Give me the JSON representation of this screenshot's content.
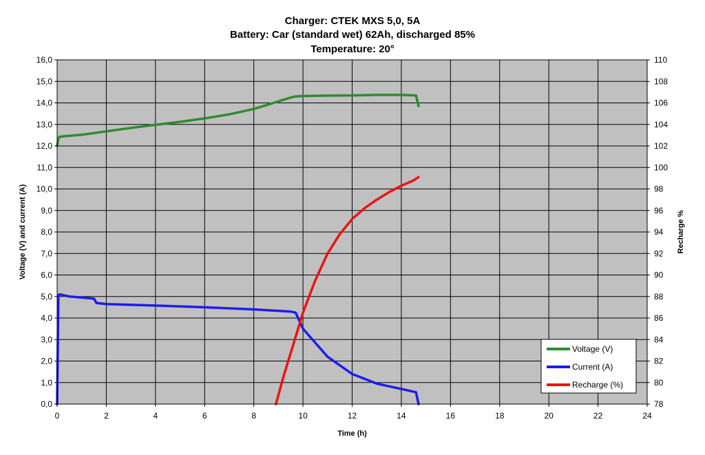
{
  "chart_data": {
    "type": "line",
    "title": [
      "Charger: CTEK MXS 5,0, 5A",
      "Battery: Car (standard wet) 62Ah, discharged 85%",
      "Temperature: 20°"
    ],
    "xlabel": "Time (h)",
    "ylabel_left": "Voltage (V) and current (A)",
    "ylabel_right": "Recharge %",
    "xlim": [
      0,
      24
    ],
    "ylim_left": [
      0,
      16
    ],
    "ylim_right": [
      78,
      110
    ],
    "x_ticks": [
      "0",
      "2",
      "4",
      "6",
      "8",
      "10",
      "12",
      "14",
      "16",
      "18",
      "20",
      "22",
      "24"
    ],
    "y_left_ticks": [
      "0,0",
      "1,0",
      "2,0",
      "3,0",
      "4,0",
      "5,0",
      "6,0",
      "7,0",
      "8,0",
      "9,0",
      "10,0",
      "11,0",
      "12,0",
      "13,0",
      "14,0",
      "15,0",
      "16,0"
    ],
    "y_right_ticks": [
      "78",
      "80",
      "82",
      "84",
      "86",
      "88",
      "90",
      "92",
      "94",
      "96",
      "98",
      "100",
      "102",
      "104",
      "106",
      "108",
      "110"
    ],
    "grid": true,
    "plot_background": "#c0c0c0",
    "legend_position": "bottom-right",
    "series": [
      {
        "name": "Voltage (V)",
        "axis": "left",
        "color": "#2e8b2e",
        "x": [
          0,
          0.05,
          0.1,
          0.3,
          1,
          2,
          3,
          4,
          5,
          6,
          7,
          8,
          8.8,
          9.5,
          9.7,
          10,
          11,
          12,
          13,
          14,
          14.6,
          14.7
        ],
        "y": [
          12.0,
          12.35,
          12.43,
          12.45,
          12.52,
          12.68,
          12.84,
          12.98,
          13.12,
          13.28,
          13.47,
          13.72,
          14.0,
          14.25,
          14.3,
          14.32,
          14.34,
          14.35,
          14.37,
          14.37,
          14.35,
          13.85
        ]
      },
      {
        "name": "Current (A)",
        "axis": "left",
        "color": "#1c1cf0",
        "x": [
          0,
          0.05,
          0.1,
          0.5,
          1,
          1.5,
          1.6,
          2,
          4,
          6,
          8,
          9.5,
          9.7,
          10,
          11,
          12,
          13,
          14,
          14.6,
          14.7
        ],
        "y": [
          0,
          5.05,
          5.1,
          5.0,
          4.95,
          4.9,
          4.7,
          4.65,
          4.58,
          4.5,
          4.4,
          4.3,
          4.25,
          3.5,
          2.2,
          1.4,
          0.95,
          0.7,
          0.55,
          0.0
        ]
      },
      {
        "name": "Recharge (%)",
        "axis": "right",
        "color": "#ee1111",
        "x": [
          8.9,
          9.2,
          9.6,
          10,
          10.5,
          11,
          11.5,
          12,
          12.5,
          13,
          13.5,
          14,
          14.5,
          14.7
        ],
        "y": [
          78,
          80.5,
          83.5,
          86.5,
          89.5,
          92,
          93.8,
          95.2,
          96.2,
          97.0,
          97.7,
          98.3,
          98.8,
          99.1
        ]
      }
    ]
  }
}
